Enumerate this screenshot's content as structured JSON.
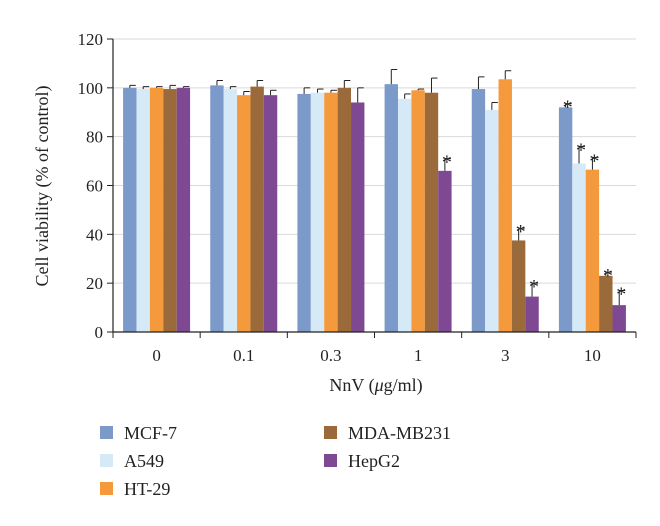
{
  "chart_data": {
    "type": "bar",
    "xlabel_prefix": "NnV (",
    "xlabel_unit_symbol": "μ",
    "xlabel_suffix": "g/ml)",
    "ylabel": "Cell viability (% of control)",
    "ylim": [
      0,
      120
    ],
    "yticks": [
      "0",
      "20",
      "40",
      "60",
      "80",
      "100",
      "120"
    ],
    "categories": [
      "0",
      "0.1",
      "0.3",
      "1",
      "3",
      "10"
    ],
    "significance_marker": "*",
    "series": [
      {
        "name": "MCF-7",
        "color": "#7b99c9",
        "values": [
          100,
          101,
          97.5,
          101.5,
          99.5,
          92
        ],
        "errors": [
          1,
          2,
          2.5,
          6,
          5,
          1.5
        ],
        "significant": [
          false,
          false,
          false,
          false,
          false,
          true
        ]
      },
      {
        "name": "A549",
        "color": "#d5e9f7",
        "values": [
          99.5,
          99.5,
          98,
          95.5,
          91,
          69
        ],
        "errors": [
          1,
          1,
          1.5,
          2,
          3,
          7
        ],
        "significant": [
          false,
          false,
          false,
          false,
          false,
          true
        ]
      },
      {
        "name": "HT-29",
        "color": "#f59a3c",
        "values": [
          100,
          97,
          98,
          99,
          103.5,
          66.5
        ],
        "errors": [
          0.5,
          1.5,
          1,
          0.5,
          3.5,
          5
        ],
        "significant": [
          false,
          false,
          false,
          false,
          false,
          true
        ]
      },
      {
        "name": "MDA-MB231",
        "color": "#9b6a3a",
        "values": [
          99.5,
          100.5,
          100,
          98,
          37.5,
          23
        ],
        "errors": [
          1.5,
          2.5,
          3,
          6,
          5,
          1.5
        ],
        "significant": [
          false,
          false,
          false,
          false,
          true,
          true
        ]
      },
      {
        "name": "HepG2",
        "color": "#7e4992",
        "values": [
          100,
          97,
          94,
          66,
          14.5,
          11
        ],
        "errors": [
          0.5,
          2,
          6,
          5,
          5.5,
          6
        ],
        "significant": [
          false,
          false,
          false,
          true,
          true,
          true
        ]
      }
    ],
    "legend": {
      "placement": "bottom",
      "columns": [
        [
          "MCF-7",
          "A549",
          "HT-29"
        ],
        [
          "MDA-MB231",
          "HepG2"
        ]
      ]
    }
  }
}
